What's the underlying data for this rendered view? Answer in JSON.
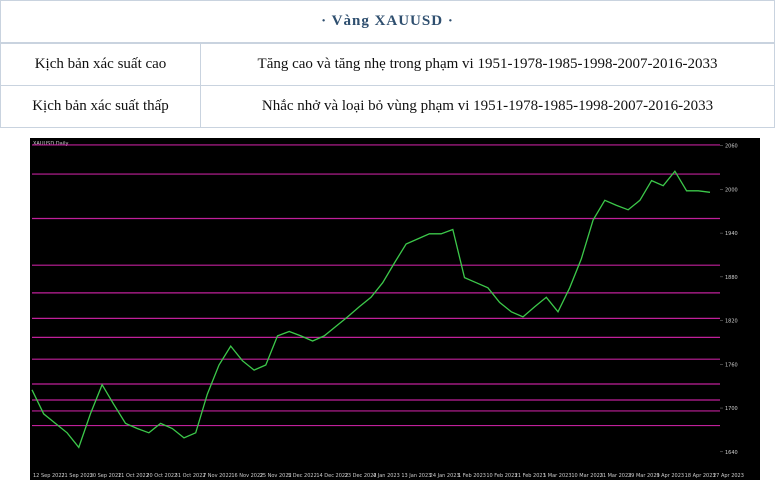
{
  "header": {
    "title": "· Vàng XAUUSD ·"
  },
  "table": {
    "rows": [
      [
        "Kịch bản xác suất cao",
        "Tăng cao và tăng nhẹ trong phạm vi 1951-1978-1985-1998-2007-2016-2033"
      ],
      [
        "Kịch bản xác suất thấp",
        "Nhắc nhở và loại bỏ vùng phạm vi 1951-1978-1985-1998-2007-2016-2033"
      ]
    ]
  },
  "chart_data": {
    "type": "line",
    "title": "XAUUSD,Daily",
    "color": "#3cc84a",
    "level_color": "#c0209a",
    "ylim": [
      1615,
      2065
    ],
    "yticks": [
      1640,
      1700,
      1760,
      1820,
      1880,
      1940,
      2000,
      2060
    ],
    "levels": [
      2061,
      2021,
      1960,
      1896,
      1858,
      1823,
      1797,
      1767,
      1733,
      1711,
      1696,
      1676
    ],
    "xlabels": [
      "12 Sep 2022",
      "21 Sep 2022",
      "30 Sep 2022",
      "11 Oct 2022",
      "20 Oct 2022",
      "31 Oct 2022",
      "7 Nov 2022",
      "16 Nov 2022",
      "25 Nov 2022",
      "5 Dec 2022",
      "14 Dec 2022",
      "23 Dec 2022",
      "4 Jan 2023",
      "13 Jan 2023",
      "24 Jan 2023",
      "1 Feb 2023",
      "10 Feb 2023",
      "21 Feb 2023",
      "1 Mar 2023",
      "10 Mar 2023",
      "21 Mar 2023",
      "29 Mar 2023",
      "9 Apr 2023",
      "18 Apr 2023",
      "27 Apr 2023"
    ],
    "values": [
      1725,
      1692,
      1679,
      1666,
      1646,
      1692,
      1732,
      1705,
      1679,
      1672,
      1666,
      1679,
      1672,
      1659,
      1666,
      1719,
      1759,
      1785,
      1765,
      1752,
      1759,
      1799,
      1805,
      1799,
      1792,
      1799,
      1812,
      1825,
      1839,
      1852,
      1872,
      1899,
      1925,
      1932,
      1939,
      1939,
      1945,
      1879,
      1872,
      1865,
      1845,
      1832,
      1825,
      1839,
      1852,
      1832,
      1865,
      1905,
      1958,
      1985,
      1978,
      1972,
      1985,
      2012,
      2005,
      2025,
      1998,
      1998,
      1996
    ]
  }
}
